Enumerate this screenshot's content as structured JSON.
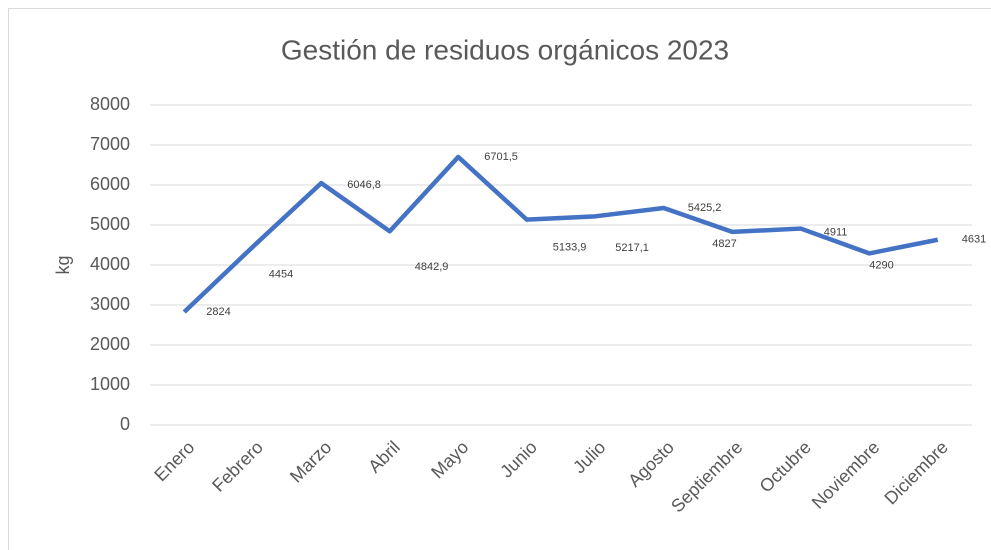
{
  "chart_data": {
    "type": "line",
    "title": "Gestión de residuos orgánicos 2023",
    "y_label": "kg",
    "categories": [
      "Enero",
      "Febrero",
      "Marzo",
      "Abril",
      "Mayo",
      "Junio",
      "Julio",
      "Agosto",
      "Septiembre",
      "Octubre",
      "Noviembre",
      "Diciembre"
    ],
    "series": [
      {
        "name": "kg",
        "color": "#4472c4",
        "values": [
          2824,
          4454,
          6046.8,
          4842.9,
          6701.5,
          5133.9,
          5217.1,
          5425.2,
          4827,
          4911,
          4290,
          4631
        ],
        "value_labels": [
          "2824",
          "4454",
          "6046,8",
          "4842,9",
          "6701,5",
          "5133,9",
          "5217,1",
          "5425,2",
          "4827",
          "4911",
          "4290",
          "4631"
        ]
      }
    ],
    "ylim": [
      0,
      8000
    ],
    "yticks": [
      0,
      1000,
      2000,
      3000,
      4000,
      5000,
      6000,
      7000,
      8000
    ],
    "grid": true,
    "legend": false
  }
}
